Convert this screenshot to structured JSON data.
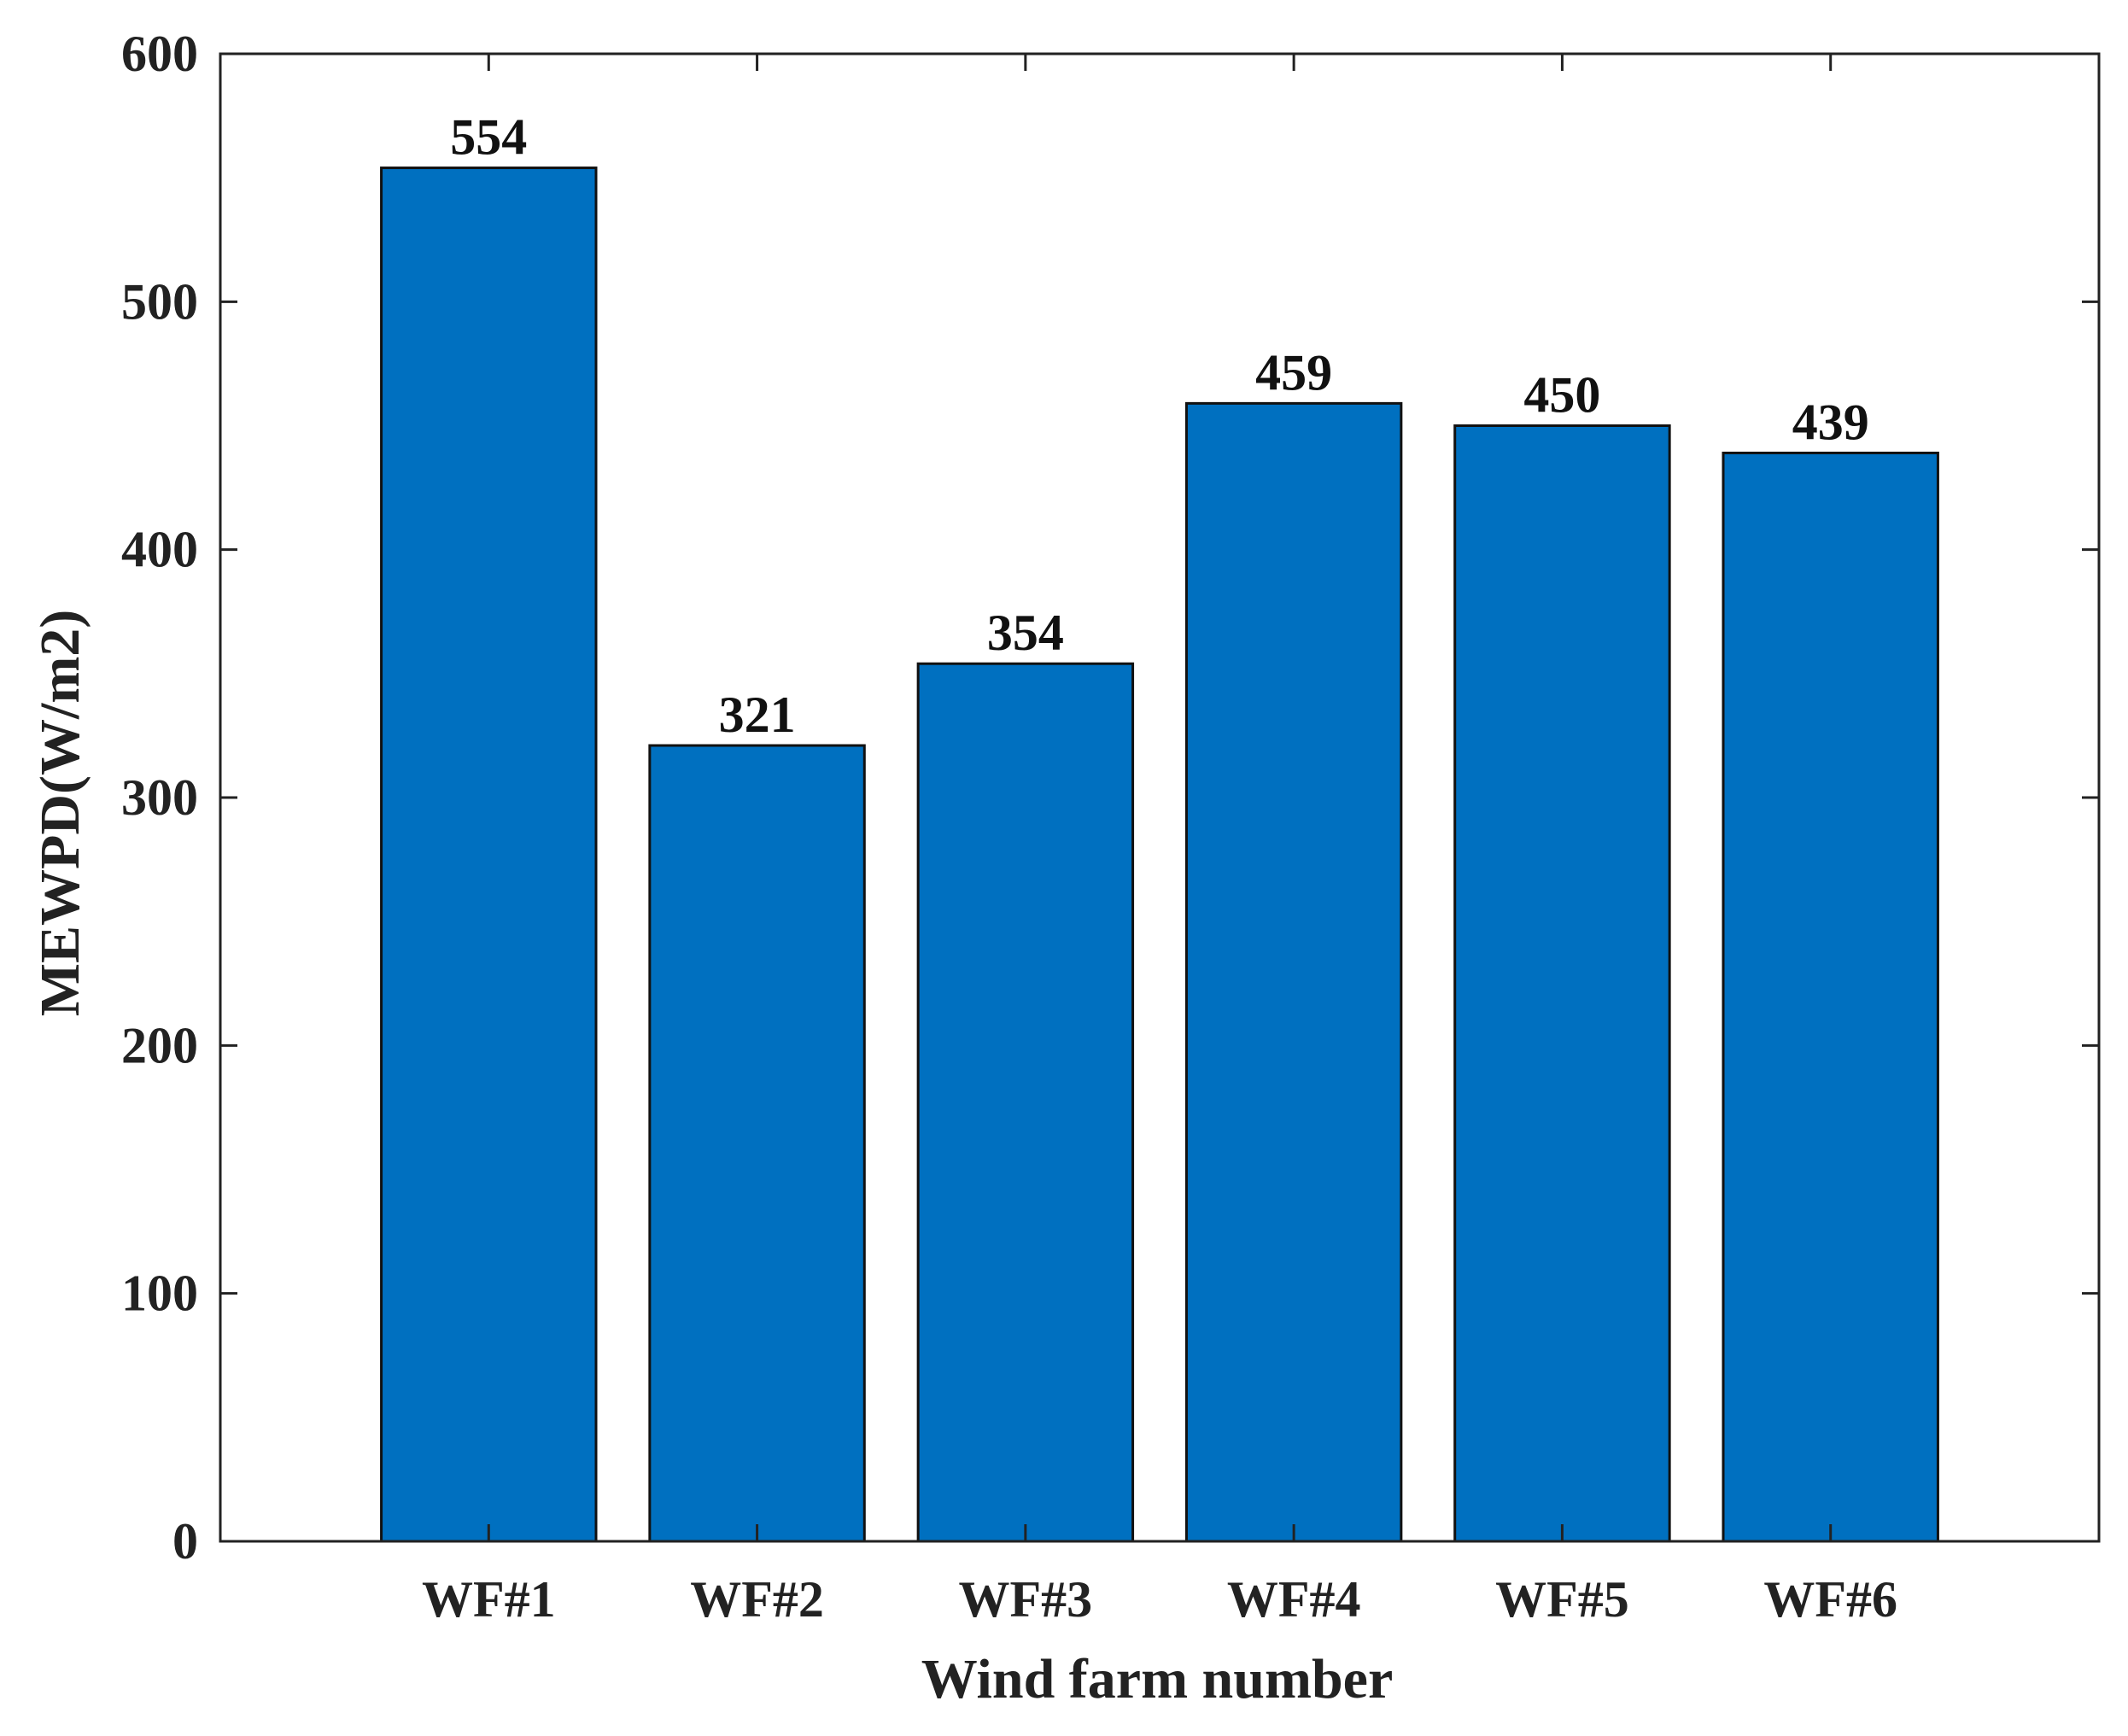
{
  "chart_data": {
    "type": "bar",
    "title": "",
    "xlabel": "Wind farm number",
    "ylabel": "MEWPD(W/m2)",
    "categories": [
      "WF#1",
      "WF#2",
      "WF#3",
      "WF#4",
      "WF#5",
      "WF#6"
    ],
    "values": [
      554,
      321,
      354,
      459,
      450,
      439
    ],
    "data_labels": [
      "554",
      "321",
      "354",
      "459",
      "450",
      "439"
    ],
    "ylim": [
      0,
      600
    ],
    "yticks": [
      0,
      100,
      200,
      300,
      400,
      500,
      600
    ],
    "ytick_labels": [
      "0",
      "100",
      "200",
      "300",
      "400",
      "500",
      "600"
    ],
    "xlim": [
      0,
      7
    ],
    "grid": false,
    "legend": "none",
    "colors": {
      "bar_fill": "#0070C0",
      "bar_edge": "#111111",
      "axis": "#222222",
      "text": "#222222"
    }
  }
}
